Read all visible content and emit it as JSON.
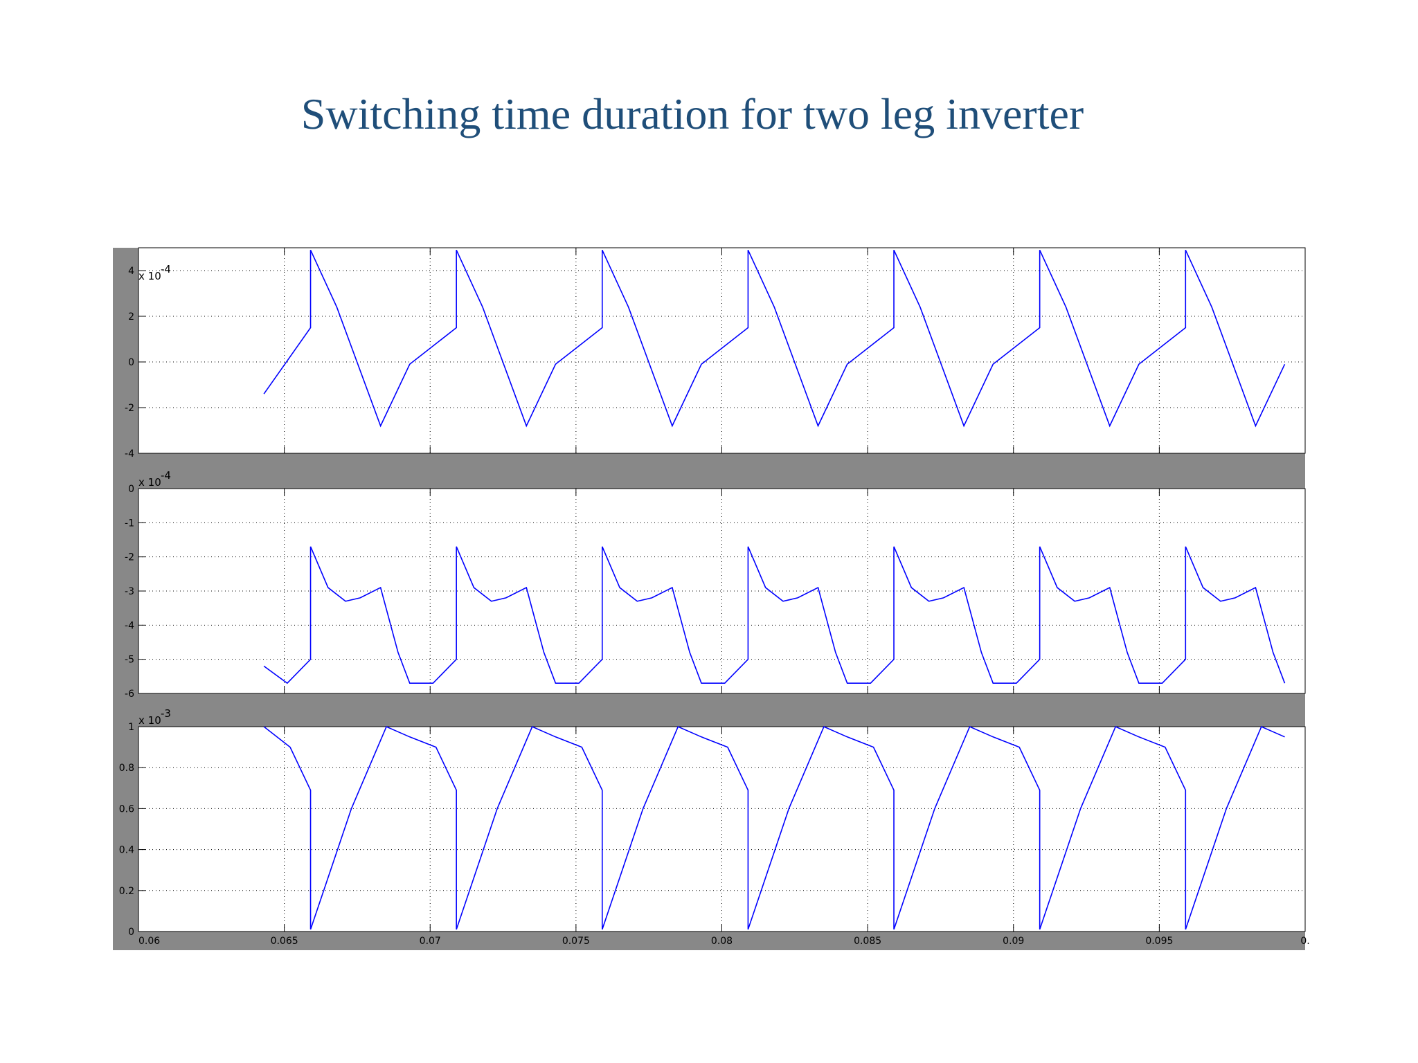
{
  "slide": {
    "title": "Switching time duration for two leg inverter"
  },
  "chart_data": {
    "type": "line",
    "title": "",
    "xlabel": "",
    "xlim": [
      0.06,
      0.1
    ],
    "x_ticks": [
      "0.06",
      "0.065",
      "0.07",
      "0.075",
      "0.08",
      "0.085",
      "0.09",
      "0.095",
      "0."
    ],
    "grid": true,
    "line_color": "#0000ff",
    "panel_bg": "#ffffff",
    "frame_color": "#888888",
    "series_start_x": 0.0643,
    "period": 0.005,
    "panels": [
      {
        "name": "",
        "exponent": "x 10",
        "exponent_power": "-4",
        "ylim": [
          -4,
          5
        ],
        "y_ticks": [
          "-4",
          "-2",
          "0",
          "2",
          "4"
        ],
        "y_tick_values": [
          -4,
          -2,
          0,
          2,
          4
        ],
        "cycle_x": [
          0,
          0.0016,
          0.0016,
          0.0025,
          0.004,
          0.005
        ],
        "cycle_y": [
          -1.4,
          1.5,
          4.9,
          2.4,
          -2.8,
          -0.1
        ]
      },
      {
        "name": "",
        "exponent": "x 10",
        "exponent_power": "-4",
        "ylim": [
          -6,
          0
        ],
        "y_ticks": [
          "-6",
          "-5",
          "-4",
          "-3",
          "-2",
          "-1",
          "0"
        ],
        "y_tick_values": [
          -6,
          -5,
          -4,
          -3,
          -2,
          -1,
          0
        ],
        "cycle_x": [
          0,
          0.0008,
          0.0016,
          0.0016,
          0.0022,
          0.0028,
          0.0033,
          0.004,
          0.0046,
          0.005
        ],
        "cycle_y": [
          -5.7,
          -5.7,
          -5.0,
          -1.7,
          -2.9,
          -3.3,
          -3.2,
          -2.9,
          -4.8,
          -5.7
        ],
        "first_y": -5.2
      },
      {
        "name": "",
        "exponent": "x 10",
        "exponent_power": "-3",
        "ylim": [
          0,
          1
        ],
        "y_ticks": [
          "0",
          "0.2",
          "0.4",
          "0.6",
          "0.8",
          "1"
        ],
        "y_tick_values": [
          0,
          0.2,
          0.4,
          0.6,
          0.8,
          1
        ],
        "cycle_x": [
          0,
          0.0009,
          0.0016,
          0.0016,
          0.003,
          0.0042,
          0.005
        ],
        "cycle_y": [
          0.97,
          0.9,
          0.69,
          0.01,
          0.6,
          1.0,
          0.95
        ],
        "first_y": 1.0
      }
    ]
  }
}
